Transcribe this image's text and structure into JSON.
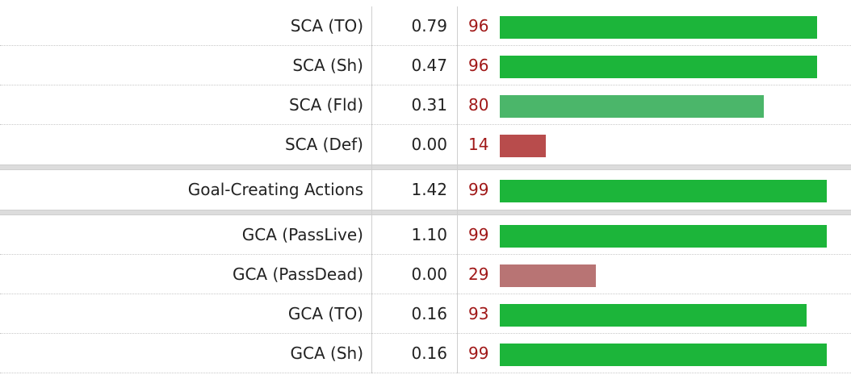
{
  "chart_data": {
    "type": "bar",
    "orientation": "horizontal",
    "xlim": [
      0,
      100
    ],
    "rows": [
      {
        "label": "SCA (TO)",
        "value": "0.79",
        "percentile": 96,
        "color": "#1cb53a",
        "group": 0
      },
      {
        "label": "SCA (Sh)",
        "value": "0.47",
        "percentile": 96,
        "color": "#1cb53a",
        "group": 0
      },
      {
        "label": "SCA (Fld)",
        "value": "0.31",
        "percentile": 80,
        "color": "#4bb66a",
        "group": 0
      },
      {
        "label": "SCA (Def)",
        "value": "0.00",
        "percentile": 14,
        "color": "#b84c4c",
        "group": 0
      },
      {
        "label": "Goal-Creating Actions",
        "value": "1.42",
        "percentile": 99,
        "color": "#1cb53a",
        "group": 1
      },
      {
        "label": "GCA (PassLive)",
        "value": "1.10",
        "percentile": 99,
        "color": "#1cb53a",
        "group": 2
      },
      {
        "label": "GCA (PassDead)",
        "value": "0.00",
        "percentile": 29,
        "color": "#b87474",
        "group": 2
      },
      {
        "label": "GCA (TO)",
        "value": "0.16",
        "percentile": 93,
        "color": "#1cb53a",
        "group": 2
      },
      {
        "label": "GCA (Sh)",
        "value": "0.16",
        "percentile": 99,
        "color": "#1cb53a",
        "group": 2
      }
    ]
  }
}
